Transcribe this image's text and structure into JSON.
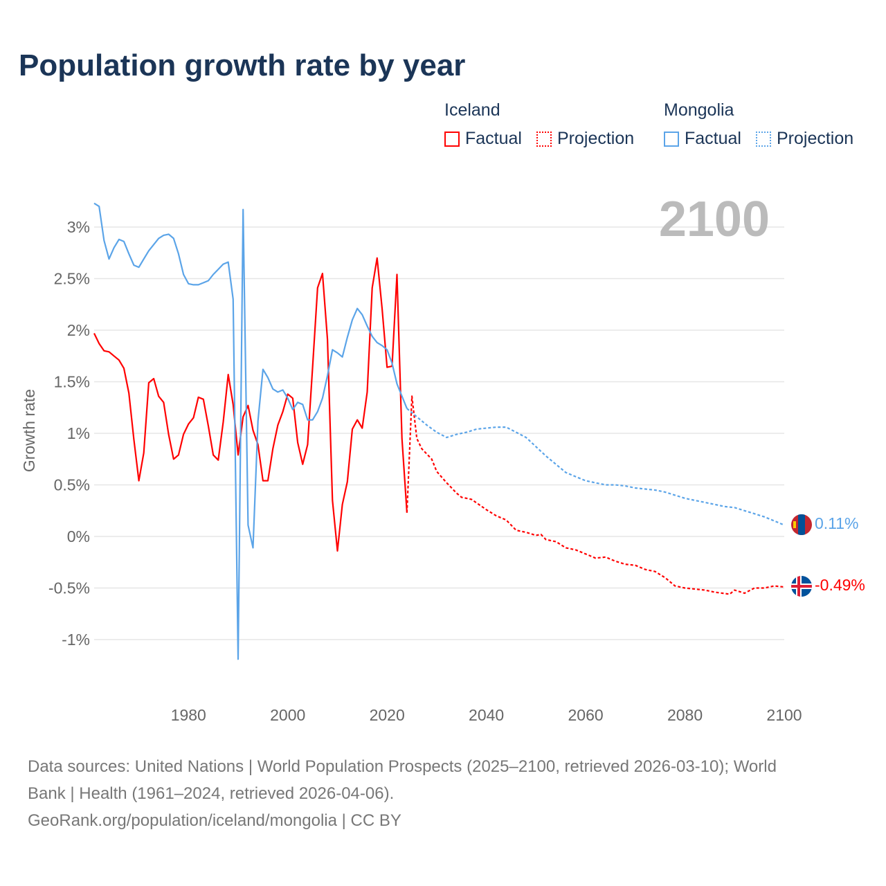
{
  "title": "Population growth rate by year",
  "legend": {
    "iceland": {
      "name": "Iceland",
      "factual": "Factual",
      "projection": "Projection",
      "color": "#ff0000"
    },
    "mongolia": {
      "name": "Mongolia",
      "factual": "Factual",
      "projection": "Projection",
      "color": "#5ba4e8"
    }
  },
  "year_label": "2100",
  "end_labels": {
    "mongolia": "0.11%",
    "iceland": "-0.49%"
  },
  "source_lines": [
    "Data sources: United Nations | World Population Prospects (2025–2100, retrieved 2026-03-10); World",
    "Bank | Health (1961–2024, retrieved 2026-04-06).",
    "GeoRank.org/population/iceland/mongolia | CC BY"
  ],
  "chart_data": {
    "type": "line",
    "title": "Population growth rate by year",
    "xlabel": "",
    "ylabel": "Growth rate",
    "xlim": [
      1961,
      2100
    ],
    "ylim": [
      -1.25,
      3.3
    ],
    "yticks": [
      {
        "v": 3,
        "l": "3%"
      },
      {
        "v": 2.5,
        "l": "2.5%"
      },
      {
        "v": 2,
        "l": "2%"
      },
      {
        "v": 1.5,
        "l": "1.5%"
      },
      {
        "v": 1,
        "l": "1%"
      },
      {
        "v": 0.5,
        "l": "0.5%"
      },
      {
        "v": 0,
        "l": "0%"
      },
      {
        "v": -0.5,
        "l": "-0.5%"
      },
      {
        "v": -1,
        "l": "-1%"
      }
    ],
    "xticks": [
      {
        "v": 1980,
        "l": "1980"
      },
      {
        "v": 2000,
        "l": "2000"
      },
      {
        "v": 2020,
        "l": "2020"
      },
      {
        "v": 2040,
        "l": "2040"
      },
      {
        "v": 2060,
        "l": "2060"
      },
      {
        "v": 2080,
        "l": "2080"
      },
      {
        "v": 2100,
        "l": "2100"
      }
    ],
    "series": [
      {
        "name": "Iceland Factual",
        "color": "#ff0000",
        "dashed": false,
        "start": 1961,
        "values": [
          1.97,
          1.87,
          1.8,
          1.79,
          1.75,
          1.71,
          1.63,
          1.39,
          0.94,
          0.54,
          0.81,
          1.49,
          1.53,
          1.36,
          1.3,
          0.99,
          0.75,
          0.79,
          0.99,
          1.09,
          1.15,
          1.35,
          1.33,
          1.07,
          0.79,
          0.74,
          1.11,
          1.57,
          1.28,
          0.79,
          1.16,
          1.27,
          1.03,
          0.89,
          0.54,
          0.54,
          0.85,
          1.08,
          1.21,
          1.38,
          1.34,
          0.91,
          0.7,
          0.89,
          1.64,
          2.41,
          2.55,
          1.91,
          0.35,
          -0.14,
          0.31,
          0.53,
          1.04,
          1.13,
          1.05,
          1.4,
          2.41,
          2.7,
          2.21,
          1.64,
          1.65,
          2.54,
          0.95,
          0.23
        ]
      },
      {
        "name": "Iceland Projection",
        "color": "#ff0000",
        "dashed": true,
        "points": [
          [
            2024,
            0.23
          ],
          [
            2025,
            1.36
          ],
          [
            2026,
            0.95
          ],
          [
            2027,
            0.85
          ],
          [
            2029,
            0.75
          ],
          [
            2030,
            0.63
          ],
          [
            2032,
            0.52
          ],
          [
            2034,
            0.42
          ],
          [
            2035,
            0.38
          ],
          [
            2037,
            0.36
          ],
          [
            2040,
            0.26
          ],
          [
            2042,
            0.2
          ],
          [
            2044,
            0.16
          ],
          [
            2046,
            0.06
          ],
          [
            2048,
            0.04
          ],
          [
            2050,
            0.01
          ],
          [
            2051,
            0.02
          ],
          [
            2052,
            -0.03
          ],
          [
            2054,
            -0.05
          ],
          [
            2056,
            -0.11
          ],
          [
            2058,
            -0.13
          ],
          [
            2060,
            -0.17
          ],
          [
            2062,
            -0.21
          ],
          [
            2064,
            -0.2
          ],
          [
            2066,
            -0.24
          ],
          [
            2068,
            -0.27
          ],
          [
            2070,
            -0.28
          ],
          [
            2072,
            -0.32
          ],
          [
            2074,
            -0.34
          ],
          [
            2076,
            -0.4
          ],
          [
            2078,
            -0.48
          ],
          [
            2080,
            -0.5
          ],
          [
            2082,
            -0.51
          ],
          [
            2084,
            -0.52
          ],
          [
            2086,
            -0.54
          ],
          [
            2089,
            -0.56
          ],
          [
            2090,
            -0.52
          ],
          [
            2092,
            -0.55
          ],
          [
            2094,
            -0.5
          ],
          [
            2096,
            -0.5
          ],
          [
            2098,
            -0.48
          ],
          [
            2100,
            -0.49
          ]
        ]
      },
      {
        "name": "Mongolia Factual",
        "color": "#5ba4e8",
        "dashed": false,
        "start": 1961,
        "values": [
          3.23,
          3.2,
          2.87,
          2.69,
          2.8,
          2.88,
          2.86,
          2.74,
          2.63,
          2.61,
          2.69,
          2.77,
          2.83,
          2.89,
          2.92,
          2.93,
          2.89,
          2.74,
          2.54,
          2.45,
          2.44,
          2.44,
          2.46,
          2.48,
          2.54,
          2.59,
          2.64,
          2.66,
          2.3,
          -1.19,
          3.17,
          0.11,
          -0.11,
          1.12,
          1.62,
          1.54,
          1.43,
          1.4,
          1.42,
          1.34,
          1.23,
          1.3,
          1.28,
          1.13,
          1.13,
          1.21,
          1.34,
          1.56,
          1.81,
          1.78,
          1.74,
          1.93,
          2.1,
          2.21,
          2.15,
          2.04,
          1.94,
          1.88,
          1.85,
          1.81,
          1.68,
          1.48,
          1.36,
          1.24
        ]
      },
      {
        "name": "Mongolia Projection",
        "color": "#5ba4e8",
        "dashed": true,
        "points": [
          [
            2024,
            1.24
          ],
          [
            2026,
            1.16
          ],
          [
            2028,
            1.08
          ],
          [
            2030,
            1.01
          ],
          [
            2032,
            0.96
          ],
          [
            2034,
            0.99
          ],
          [
            2036,
            1.01
          ],
          [
            2038,
            1.04
          ],
          [
            2040,
            1.05
          ],
          [
            2042,
            1.06
          ],
          [
            2044,
            1.06
          ],
          [
            2046,
            1.01
          ],
          [
            2048,
            0.96
          ],
          [
            2050,
            0.87
          ],
          [
            2052,
            0.78
          ],
          [
            2054,
            0.7
          ],
          [
            2056,
            0.62
          ],
          [
            2058,
            0.58
          ],
          [
            2060,
            0.54
          ],
          [
            2062,
            0.52
          ],
          [
            2064,
            0.5
          ],
          [
            2066,
            0.5
          ],
          [
            2068,
            0.49
          ],
          [
            2070,
            0.47
          ],
          [
            2072,
            0.46
          ],
          [
            2074,
            0.45
          ],
          [
            2076,
            0.43
          ],
          [
            2078,
            0.4
          ],
          [
            2080,
            0.37
          ],
          [
            2082,
            0.35
          ],
          [
            2084,
            0.33
          ],
          [
            2086,
            0.31
          ],
          [
            2088,
            0.29
          ],
          [
            2090,
            0.28
          ],
          [
            2092,
            0.25
          ],
          [
            2094,
            0.22
          ],
          [
            2096,
            0.19
          ],
          [
            2098,
            0.15
          ],
          [
            2100,
            0.11
          ]
        ]
      }
    ]
  }
}
